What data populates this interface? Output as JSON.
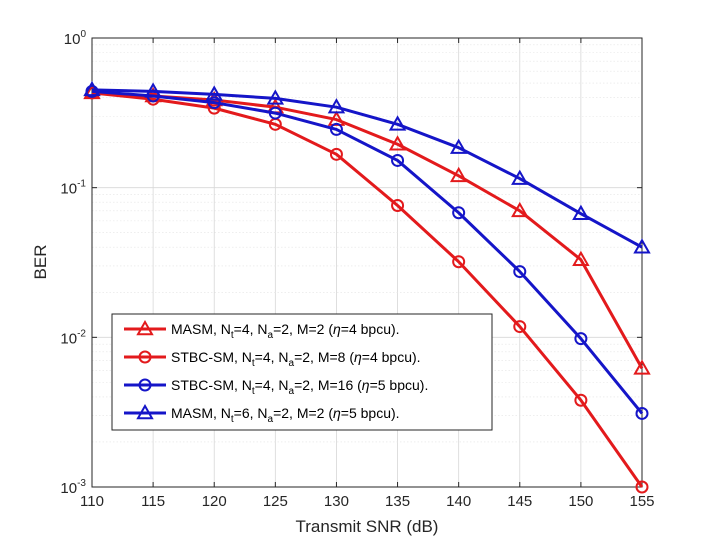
{
  "chart_data": {
    "type": "line",
    "xlabel": "Transmit SNR (dB)",
    "ylabel": "BER",
    "xlim": [
      110,
      155
    ],
    "ylim": [
      0.001,
      1
    ],
    "yscale": "log",
    "grid": "on (major and minor)",
    "legend_placement": "bottom-left",
    "x_ticks": [
      "110",
      "115",
      "120",
      "125",
      "130",
      "135",
      "140",
      "145",
      "150",
      "155"
    ],
    "y_ticks": [
      {
        "base": "10",
        "exp": "0",
        "value": 1
      },
      {
        "base": "10",
        "exp": "-1",
        "value": 0.1
      },
      {
        "base": "10",
        "exp": "-2",
        "value": 0.01
      },
      {
        "base": "10",
        "exp": "-3",
        "value": 0.001
      }
    ],
    "x": [
      110,
      115,
      120,
      125,
      130,
      135,
      140,
      145,
      150,
      155
    ],
    "series": [
      {
        "name": "MASM, Nt=4, Na=2, M=2 (η=4 bpcu).",
        "legend_parts": {
          "a": "MASM, N",
          "b": "t",
          "c": "=4, N",
          "d": "a",
          "e": "=2, M=2 (",
          "f": "η",
          "g": "=4 bpcu)."
        },
        "color": "#e31a1c",
        "marker": "triangle",
        "values": [
          0.43,
          0.41,
          0.385,
          0.345,
          0.285,
          0.195,
          0.12,
          0.07,
          0.033,
          0.0062
        ]
      },
      {
        "name": "STBC-SM, Nt=4, Na=2, M=8 (η=4 bpcu).",
        "legend_parts": {
          "a": "STBC-SM, N",
          "b": "t",
          "c": "=4, N",
          "d": "a",
          "e": "=2, M=8 (",
          "f": "η",
          "g": "=4 bpcu)."
        },
        "color": "#e31a1c",
        "marker": "circle",
        "values": [
          0.43,
          0.39,
          0.34,
          0.265,
          0.167,
          0.076,
          0.032,
          0.0118,
          0.0038,
          0.001
        ]
      },
      {
        "name": "STBC-SM, Nt=4, Na=2, M=16 (η=5 bpcu).",
        "legend_parts": {
          "a": "STBC-SM, N",
          "b": "t",
          "c": "=4, N",
          "d": "a",
          "e": "=2, M=16 (",
          "f": "η",
          "g": "=5 bpcu)."
        },
        "color": "#1515c8",
        "marker": "circle",
        "values": [
          0.44,
          0.41,
          0.37,
          0.315,
          0.245,
          0.152,
          0.068,
          0.0275,
          0.0098,
          0.0031
        ]
      },
      {
        "name": "MASM, Nt=6, Na=2, M=2 (η=5 bpcu).",
        "legend_parts": {
          "a": "MASM, N",
          "b": "t",
          "c": "=6, N",
          "d": "a",
          "e": "=2, M=2 (",
          "f": "η",
          "g": "=5 bpcu)."
        },
        "color": "#1515c8",
        "marker": "triangle",
        "values": [
          0.45,
          0.44,
          0.42,
          0.395,
          0.345,
          0.265,
          0.185,
          0.115,
          0.067,
          0.04
        ]
      }
    ]
  }
}
